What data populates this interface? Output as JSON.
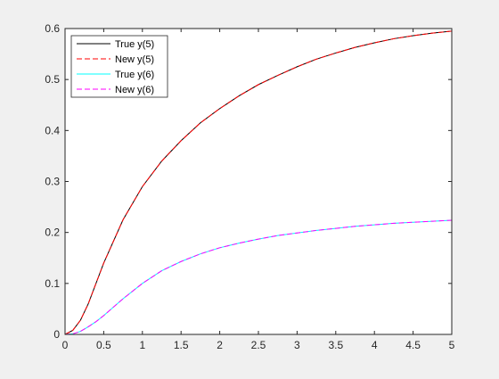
{
  "figure": {
    "background": "#f0f0f0",
    "axes_background": "#ffffff"
  },
  "chart_data": {
    "type": "line",
    "title": "",
    "xlabel": "",
    "ylabel": "",
    "xlim": [
      0,
      5
    ],
    "ylim": [
      0,
      0.6
    ],
    "xticks": [
      0,
      0.5,
      1,
      1.5,
      2,
      2.5,
      3,
      3.5,
      4,
      4.5,
      5
    ],
    "xtick_labels": [
      "0",
      "0.5",
      "1",
      "1.5",
      "2",
      "2.5",
      "3",
      "3.5",
      "4",
      "4.5",
      "5"
    ],
    "yticks": [
      0,
      0.1,
      0.2,
      0.3,
      0.4,
      0.5,
      0.6
    ],
    "ytick_labels": [
      "0",
      "0.1",
      "0.2",
      "0.3",
      "0.4",
      "0.5",
      "0.6"
    ],
    "grid": false,
    "legend_position": "top-left",
    "x": [
      0,
      0.1,
      0.2,
      0.3,
      0.4,
      0.5,
      0.75,
      1,
      1.25,
      1.5,
      1.75,
      2,
      2.25,
      2.5,
      2.75,
      3,
      3.25,
      3.5,
      3.75,
      4,
      4.25,
      4.5,
      4.75,
      5
    ],
    "series": [
      {
        "name": "True y(5)",
        "color": "#000000",
        "dash": "solid",
        "values": [
          0,
          0.008,
          0.028,
          0.06,
          0.1,
          0.14,
          0.225,
          0.29,
          0.34,
          0.38,
          0.415,
          0.443,
          0.468,
          0.49,
          0.508,
          0.525,
          0.54,
          0.552,
          0.563,
          0.572,
          0.58,
          0.586,
          0.591,
          0.595
        ]
      },
      {
        "name": "New y(5)",
        "color": "#ff0000",
        "dash": "dashed",
        "values": [
          0,
          0.008,
          0.028,
          0.06,
          0.1,
          0.14,
          0.225,
          0.29,
          0.34,
          0.38,
          0.415,
          0.443,
          0.468,
          0.49,
          0.508,
          0.525,
          0.54,
          0.552,
          0.563,
          0.572,
          0.58,
          0.586,
          0.591,
          0.595
        ]
      },
      {
        "name": "True y(6)",
        "color": "#00ffff",
        "dash": "solid",
        "values": [
          0,
          0.001,
          0.006,
          0.015,
          0.025,
          0.037,
          0.07,
          0.1,
          0.125,
          0.143,
          0.158,
          0.17,
          0.179,
          0.187,
          0.194,
          0.199,
          0.204,
          0.208,
          0.212,
          0.215,
          0.218,
          0.22,
          0.222,
          0.224
        ]
      },
      {
        "name": "New y(6)",
        "color": "#ff00ff",
        "dash": "dashed",
        "values": [
          0,
          0.001,
          0.006,
          0.015,
          0.025,
          0.037,
          0.07,
          0.1,
          0.125,
          0.143,
          0.158,
          0.17,
          0.179,
          0.187,
          0.194,
          0.199,
          0.204,
          0.208,
          0.212,
          0.215,
          0.218,
          0.22,
          0.222,
          0.224
        ]
      }
    ]
  }
}
